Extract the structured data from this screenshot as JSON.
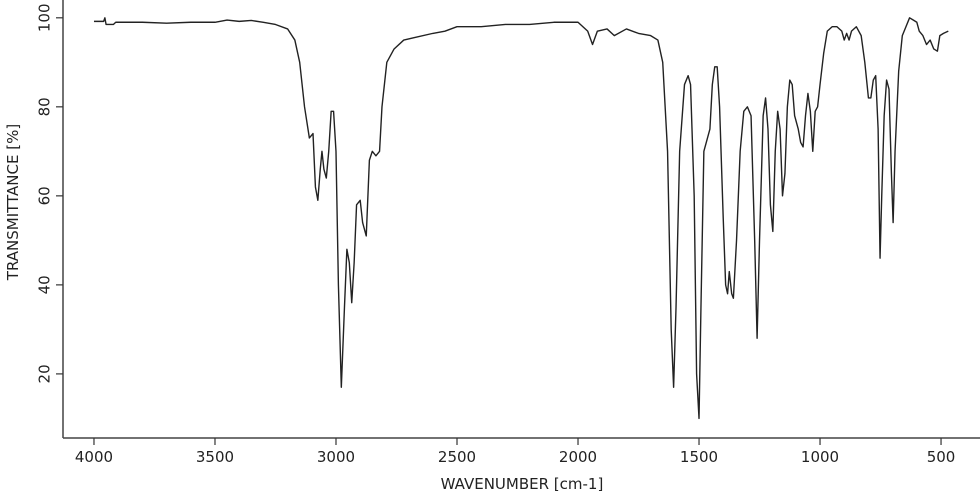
{
  "chart_data": {
    "type": "line",
    "xlabel": "WAVENUMBER [cm-1]",
    "ylabel": "TRANSMITTANCE [%]",
    "xlim": [
      4128,
      339
    ],
    "xticks": [
      4000,
      3500,
      3000,
      2500,
      2000,
      1500,
      1000,
      500
    ],
    "ylim": [
      5.6,
      104
    ],
    "yticks": [
      20,
      40,
      60,
      80,
      100
    ],
    "color": "#222222",
    "x": [
      4000,
      3960,
      3955,
      3950,
      3920,
      3910,
      3800,
      3700,
      3600,
      3500,
      3450,
      3400,
      3350,
      3300,
      3250,
      3200,
      3170,
      3150,
      3130,
      3110,
      3095,
      3085,
      3075,
      3065,
      3058,
      3050,
      3040,
      3030,
      3020,
      3010,
      3000,
      2990,
      2978,
      2965,
      2955,
      2945,
      2935,
      2925,
      2915,
      2900,
      2890,
      2875,
      2862,
      2850,
      2835,
      2820,
      2810,
      2790,
      2760,
      2720,
      2680,
      2600,
      2550,
      2500,
      2400,
      2300,
      2200,
      2100,
      2000,
      1960,
      1940,
      1920,
      1880,
      1850,
      1800,
      1750,
      1700,
      1670,
      1650,
      1630,
      1615,
      1605,
      1595,
      1580,
      1560,
      1545,
      1535,
      1520,
      1510,
      1500,
      1492,
      1480,
      1470,
      1455,
      1445,
      1435,
      1425,
      1415,
      1400,
      1390,
      1382,
      1375,
      1365,
      1358,
      1345,
      1330,
      1315,
      1300,
      1285,
      1270,
      1260,
      1250,
      1235,
      1225,
      1215,
      1205,
      1195,
      1185,
      1175,
      1165,
      1155,
      1145,
      1135,
      1125,
      1115,
      1105,
      1090,
      1080,
      1070,
      1060,
      1050,
      1040,
      1030,
      1020,
      1010,
      1000,
      985,
      970,
      950,
      930,
      910,
      900,
      890,
      880,
      870,
      850,
      830,
      815,
      800,
      790,
      780,
      770,
      760,
      752,
      745,
      735,
      725,
      715,
      705,
      698,
      690,
      675,
      660,
      645,
      630,
      615,
      600,
      590,
      575,
      560,
      545,
      530,
      515,
      505,
      490,
      470
    ],
    "values": [
      99.2,
      99.2,
      100,
      98.5,
      98.5,
      99,
      99,
      98.8,
      99,
      99,
      99.5,
      99.2,
      99.4,
      99,
      98.5,
      97.5,
      95,
      90,
      80,
      73,
      74,
      62,
      59,
      66,
      70,
      66,
      64,
      70,
      79,
      79,
      70,
      40,
      17,
      35,
      48,
      45,
      36,
      45,
      58,
      59,
      54,
      51,
      68,
      70,
      69,
      70,
      80,
      90,
      93,
      95,
      95.5,
      96.5,
      97,
      98,
      98,
      98.5,
      98.5,
      99,
      99,
      97,
      94,
      97,
      97.5,
      96,
      97.5,
      96.5,
      96,
      95,
      90,
      70,
      30,
      17,
      35,
      70,
      85,
      87,
      85,
      60,
      20,
      10,
      35,
      70,
      72,
      75,
      85,
      89,
      89,
      80,
      55,
      40,
      38,
      43,
      38,
      37,
      50,
      70,
      79,
      80,
      78,
      50,
      28,
      50,
      78,
      82,
      75,
      58,
      52,
      70,
      79,
      75,
      60,
      65,
      80,
      86,
      85,
      78,
      75,
      72,
      71,
      78,
      83,
      79,
      70,
      79,
      80,
      85,
      92,
      97,
      98,
      98,
      97,
      95,
      96.5,
      95,
      97,
      98,
      96,
      90,
      82,
      82,
      86,
      87,
      75,
      46,
      60,
      78,
      86,
      84,
      65,
      54,
      70,
      88,
      96,
      98,
      100,
      99.5,
      99,
      97,
      96,
      94,
      95,
      93,
      92.5,
      96,
      96.5,
      97
    ]
  }
}
